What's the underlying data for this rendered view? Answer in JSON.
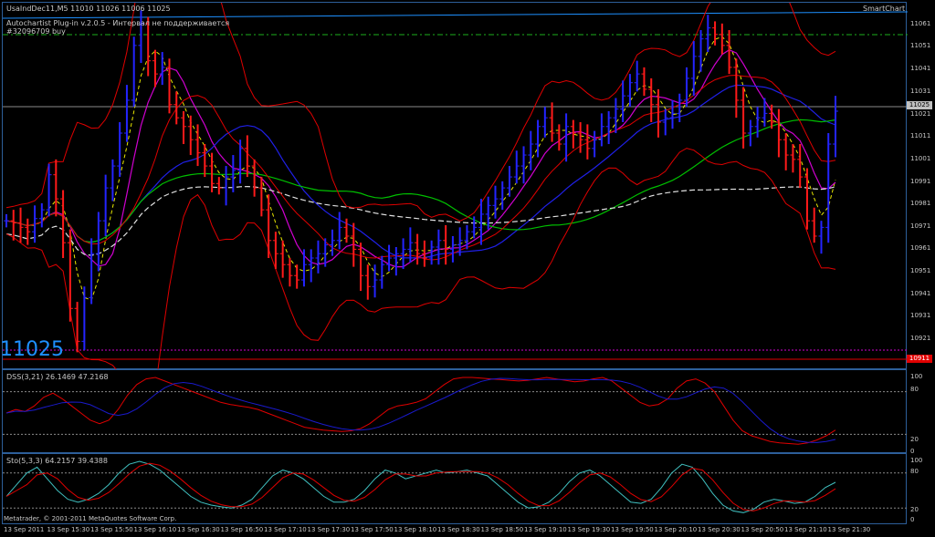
{
  "chart": {
    "header": "UsaIndDec11,M5  11010 11026 11006 11025",
    "plugin_line": "Autochartist Plug-in v.2.0.5 - Интервал не поддерживается",
    "order_line": "#32096709 buy",
    "smartchart": "SmartChart",
    "big_price": "11025",
    "copyright": "Metatrader, © 2001-2011 MetaQuotes Software Corp."
  },
  "price_axis": {
    "labels": [
      "11061",
      "11051",
      "11041",
      "11031",
      "11021",
      "11011",
      "11001",
      "10991",
      "10981",
      "10971",
      "10961",
      "10951",
      "10941",
      "10931",
      "10921"
    ],
    "bid_tag": "11025",
    "low_tag": "10911"
  },
  "dss": {
    "label": "DSS(3,21) 26.1469 47.2168",
    "levels": [
      "100",
      "80",
      "20",
      "0"
    ]
  },
  "sto": {
    "label": "Sto(5,3,3) 64.2157 39.4388",
    "levels": [
      "100",
      "80",
      "20",
      "0"
    ]
  },
  "time_axis": [
    "13 Sep 2011",
    "13 Sep 15:30",
    "13 Sep 15:50",
    "13 Sep 16:10",
    "13 Sep 16:30",
    "13 Sep 16:50",
    "13 Sep 17:10",
    "13 Sep 17:30",
    "13 Sep 17:50",
    "13 Sep 18:10",
    "13 Sep 18:30",
    "13 Sep 18:50",
    "13 Sep 19:10",
    "13 Sep 19:30",
    "13 Sep 19:50",
    "13 Sep 20:10",
    "13 Sep 20:30",
    "13 Sep 20:50",
    "13 Sep 21:10",
    "13 Sep 21:30"
  ],
  "colors": {
    "up_bar": "#2424ff",
    "down_bar": "#ff1a1a",
    "bollinger": "#e00000",
    "ma_blue": "#2020e8",
    "ma_green": "#00c000",
    "ma_magenta": "#d000d0",
    "ma_yellow": "#e8e800",
    "ma_white": "#e0e0e0",
    "dss_main": "#e00000",
    "dss_signal": "#1a1acc",
    "sto_main": "#40c0c0",
    "sto_signal": "#e00000"
  },
  "chart_data": {
    "type": "line",
    "price_range": [
      10911,
      11067
    ],
    "bar_closes": [
      10975,
      10974,
      10972,
      10970,
      10976,
      10980,
      10996,
      10985,
      10965,
      10935,
      10920,
      10940,
      10960,
      10975,
      10990,
      11000,
      11015,
      11030,
      11055,
      11065,
      11048,
      11042,
      11045,
      11028,
      11022,
      11018,
      11012,
      11006,
      11000,
      10992,
      10990,
      10995,
      10998,
      11008,
      11000,
      10990,
      10980,
      10966,
      10960,
      10955,
      10950,
      10948,
      10955,
      10958,
      10960,
      10964,
      10966,
      10972,
      10968,
      10962,
      10950,
      10945,
      10948,
      10955,
      10958,
      10960,
      10962,
      10965,
      10960,
      10958,
      10963,
      10966,
      10962,
      10964,
      10966,
      10970,
      10972,
      10978,
      10982,
      10985,
      10990,
      10995,
      11000,
      11005,
      11010,
      11018,
      11022,
      11015,
      11010,
      11018,
      11015,
      11012,
      11008,
      11012,
      11018,
      11022,
      11026,
      11032,
      11038,
      11042,
      11035,
      11028,
      11020,
      11022,
      11024,
      11030,
      11040,
      11050,
      11058,
      11063,
      11060,
      11055,
      11045,
      11030,
      11015,
      11018,
      11022,
      11024,
      11020,
      11012,
      11005,
      11003,
      10995,
      10975,
      10968,
      10972,
      11010,
      11025
    ],
    "dss_values": [
      50,
      55,
      52,
      60,
      72,
      78,
      70,
      60,
      50,
      40,
      35,
      40,
      55,
      75,
      90,
      98,
      100,
      95,
      90,
      85,
      80,
      75,
      70,
      65,
      62,
      60,
      58,
      55,
      50,
      45,
      40,
      35,
      30,
      28,
      26,
      25,
      24,
      25,
      28,
      35,
      45,
      55,
      60,
      62,
      65,
      70,
      80,
      90,
      98,
      100,
      100,
      99,
      98,
      97,
      96,
      95,
      96,
      98,
      100,
      98,
      96,
      94,
      95,
      98,
      100,
      95,
      85,
      75,
      65,
      60,
      62,
      70,
      85,
      95,
      98,
      92,
      80,
      60,
      40,
      25,
      18,
      14,
      10,
      8,
      7,
      6,
      8,
      12,
      18,
      26
    ],
    "sto_values": [
      40,
      60,
      80,
      90,
      70,
      50,
      35,
      30,
      35,
      45,
      60,
      80,
      95,
      100,
      95,
      85,
      70,
      55,
      40,
      30,
      25,
      22,
      20,
      25,
      35,
      55,
      75,
      85,
      80,
      70,
      55,
      40,
      30,
      30,
      35,
      50,
      70,
      85,
      80,
      70,
      75,
      80,
      85,
      80,
      82,
      85,
      80,
      75,
      60,
      45,
      30,
      20,
      22,
      30,
      45,
      65,
      80,
      85,
      75,
      60,
      45,
      30,
      28,
      35,
      55,
      80,
      95,
      90,
      70,
      45,
      25,
      15,
      12,
      18,
      30,
      35,
      32,
      28,
      30,
      40,
      55,
      64
    ]
  }
}
